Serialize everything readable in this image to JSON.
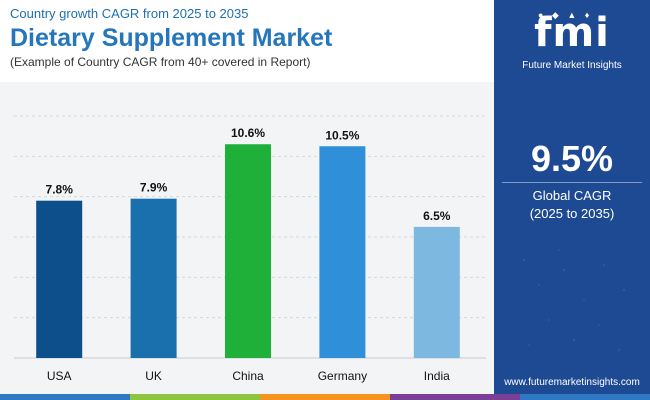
{
  "header": {
    "subtitle": "Country growth CAGR from 2025 to 2035",
    "title": "Dietary Supplement Market",
    "note": "(Example of Country CAGR from 40+ covered in Report)"
  },
  "panel": {
    "logo_word": "fmi",
    "logo_tagline": "Future Market Insights",
    "global_value": "9.5%",
    "global_label": "Global CAGR",
    "global_period": "(2025 to 2035)",
    "website": "www.futuremarketinsights.com"
  },
  "colors": {
    "panel_bg": "#1e4a93",
    "title": "#2576ba",
    "footer": [
      "#2f78c4",
      "#8cc63f",
      "#f7941d",
      "#7b3f98",
      "#2f78c4"
    ]
  },
  "chart_data": {
    "type": "bar",
    "categories": [
      "USA",
      "UK",
      "China",
      "Germany",
      "India"
    ],
    "values": [
      7.8,
      7.9,
      10.6,
      10.5,
      6.5
    ],
    "value_labels": [
      "7.8%",
      "7.9%",
      "10.6%",
      "10.5%",
      "6.5%"
    ],
    "bar_colors": [
      "#0d4f8b",
      "#1a6fad",
      "#1fb03a",
      "#2f8fd8",
      "#7db8e0"
    ],
    "ylim": [
      0,
      12
    ],
    "grid": true
  }
}
